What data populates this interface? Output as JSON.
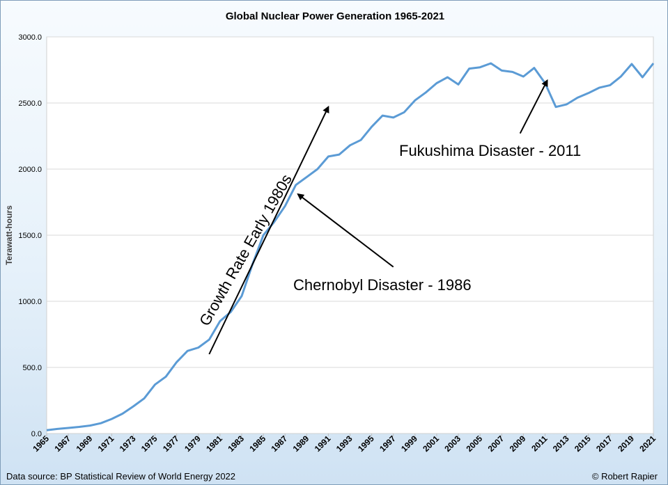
{
  "chart_data": {
    "type": "line",
    "title": "Global Nuclear Power Generation 1965-2021",
    "ylabel": "Terawatt-hours",
    "xlabel": "",
    "ylim": [
      0,
      3000
    ],
    "yticks": [
      "0.0",
      "500.0",
      "1000.0",
      "1500.0",
      "2000.0",
      "2500.0",
      "3000.0"
    ],
    "grid": true,
    "legend": "none",
    "line_color": "#5b9bd5",
    "x_tick_labels": [
      "1965",
      "1967",
      "1969",
      "1971",
      "1973",
      "1975",
      "1977",
      "1979",
      "1981",
      "1983",
      "1985",
      "1987",
      "1989",
      "1991",
      "1993",
      "1995",
      "1997",
      "1999",
      "2001",
      "2003",
      "2005",
      "2007",
      "2009",
      "2011",
      "2013",
      "2015",
      "2017",
      "2019",
      "2021"
    ],
    "x": [
      1965,
      1966,
      1967,
      1968,
      1969,
      1970,
      1971,
      1972,
      1973,
      1974,
      1975,
      1976,
      1977,
      1978,
      1979,
      1980,
      1981,
      1982,
      1983,
      1984,
      1985,
      1986,
      1987,
      1988,
      1989,
      1990,
      1991,
      1992,
      1993,
      1994,
      1995,
      1996,
      1997,
      1998,
      1999,
      2000,
      2001,
      2002,
      2003,
      2004,
      2005,
      2006,
      2007,
      2008,
      2009,
      2010,
      2011,
      2012,
      2013,
      2014,
      2015,
      2016,
      2017,
      2018,
      2019,
      2020,
      2021
    ],
    "series": [
      {
        "values": [
          25,
          35,
          42,
          50,
          60,
          78,
          110,
          150,
          205,
          265,
          370,
          430,
          540,
          625,
          650,
          710,
          850,
          920,
          1040,
          1280,
          1500,
          1600,
          1720,
          1880,
          1940,
          2000,
          2095,
          2110,
          2180,
          2220,
          2320,
          2405,
          2390,
          2430,
          2520,
          2580,
          2650,
          2695,
          2640,
          2760,
          2770,
          2800,
          2745,
          2735,
          2700,
          2765,
          2650,
          2470,
          2490,
          2540,
          2575,
          2615,
          2635,
          2700,
          2795,
          2695,
          2800
        ]
      }
    ],
    "annotations": [
      {
        "label": "Growth Rate Early 1980s",
        "from": [
          1980,
          600
        ],
        "to": [
          1991,
          2470
        ],
        "kind": "arrow-rotated-label"
      },
      {
        "label": "Chernobyl Disaster - 1986",
        "from": [
          1997,
          1260
        ],
        "to": [
          1988.2,
          1810
        ],
        "kind": "arrow"
      },
      {
        "label": "Fukushima Disaster - 2011",
        "from": [
          2008.7,
          2270
        ],
        "to": [
          2011.2,
          2670
        ],
        "kind": "arrow"
      }
    ]
  },
  "footer": {
    "source": "Data source: BP Statistical Review of World Energy 2022",
    "credit": "© Robert Rapier"
  }
}
